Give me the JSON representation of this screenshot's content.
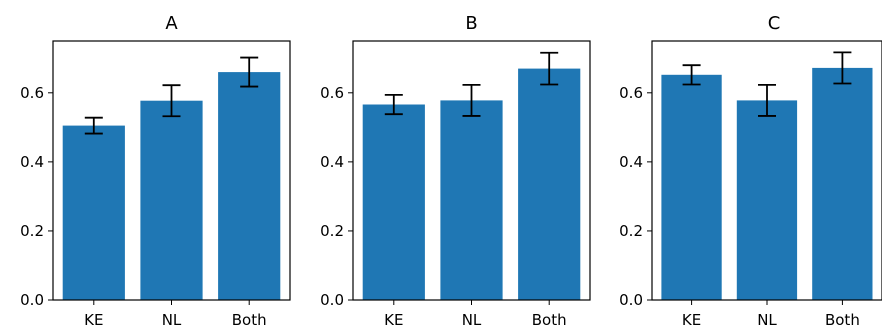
{
  "chart_data": [
    {
      "type": "bar",
      "title": "A",
      "categories": [
        "KE",
        "NL",
        "Both"
      ],
      "values": [
        0.505,
        0.577,
        0.66
      ],
      "errors": [
        0.023,
        0.045,
        0.042
      ],
      "ylim": [
        0,
        0.75
      ],
      "yticks": [
        "0.0",
        "0.2",
        "0.4",
        "0.6"
      ],
      "bar_color": "#1f77b4"
    },
    {
      "type": "bar",
      "title": "B",
      "categories": [
        "KE",
        "NL",
        "Both"
      ],
      "values": [
        0.566,
        0.578,
        0.67
      ],
      "errors": [
        0.028,
        0.045,
        0.046
      ],
      "ylim": [
        0,
        0.75
      ],
      "yticks": [
        "0.0",
        "0.2",
        "0.4",
        "0.6"
      ],
      "bar_color": "#1f77b4"
    },
    {
      "type": "bar",
      "title": "C",
      "categories": [
        "KE",
        "NL",
        "Both"
      ],
      "values": [
        0.652,
        0.578,
        0.672
      ],
      "errors": [
        0.028,
        0.045,
        0.045
      ],
      "ylim": [
        0,
        0.75
      ],
      "yticks": [
        "0.0",
        "0.2",
        "0.4",
        "0.6"
      ],
      "bar_color": "#1f77b4"
    }
  ]
}
